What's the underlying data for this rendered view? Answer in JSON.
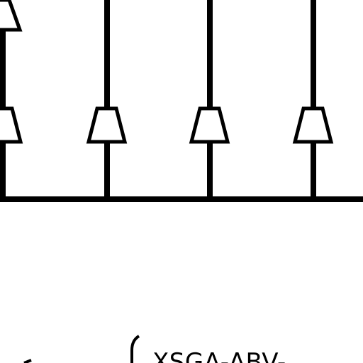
{
  "diagram": {
    "stroke_color": "#000000",
    "background_color": "#ffffff",
    "label": "XSGA-ABV-"
  }
}
